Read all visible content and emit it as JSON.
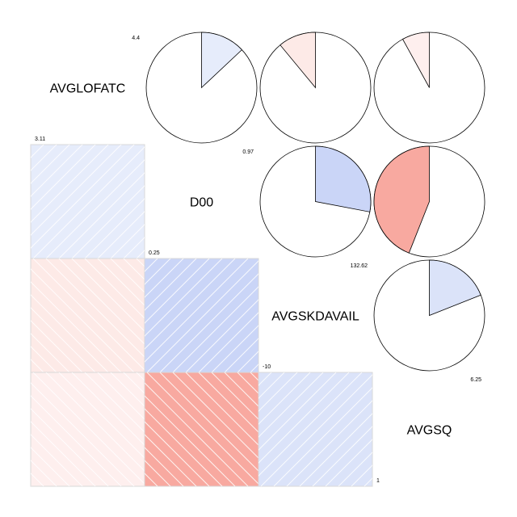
{
  "chart_data": {
    "type": "heatmap",
    "style": "corrgram",
    "lower_panel": "shade",
    "upper_panel": "pie",
    "variables": [
      "AVGLOFATC",
      "D00",
      "AVGSKDAVAIL",
      "AVGSQ"
    ],
    "range_labels": [
      {
        "min": "3.11",
        "max": "4.4"
      },
      {
        "min": "0.25",
        "max": "0.97"
      },
      {
        "min": "-10",
        "max": "132.62"
      },
      {
        "min": "1",
        "max": "6.25"
      }
    ],
    "correlations": [
      [
        1.0,
        0.13,
        -0.11,
        -0.08
      ],
      [
        0.13,
        1.0,
        0.28,
        -0.44
      ],
      [
        -0.11,
        0.28,
        1.0,
        0.19
      ],
      [
        -0.08,
        -0.44,
        0.19,
        1.0
      ]
    ],
    "colors": {
      "positive": "#4169e1",
      "negative": "#f03c28",
      "background": "#ffffff"
    }
  }
}
